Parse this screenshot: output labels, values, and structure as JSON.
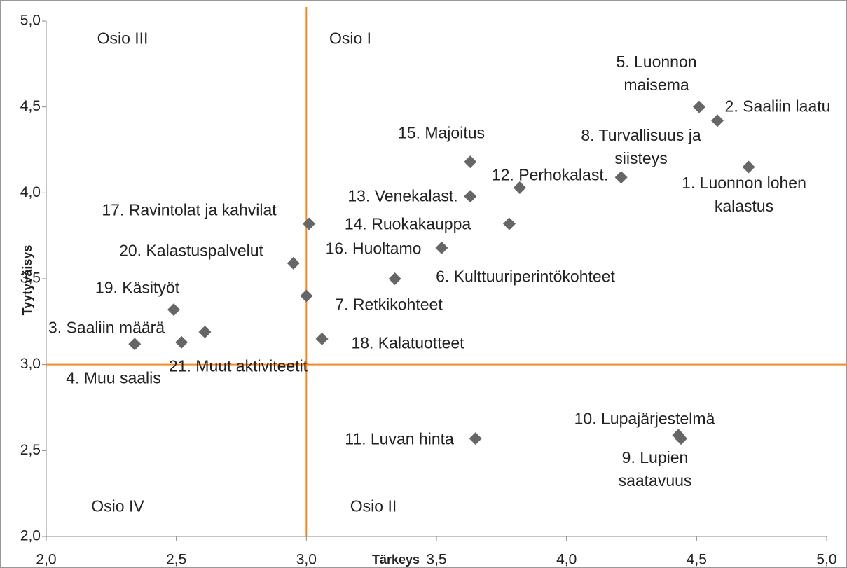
{
  "chart_data": {
    "type": "scatter",
    "x_label": "Tärkeys",
    "y_label": "Tyytyväisys",
    "color": "#666666",
    "reference_color": "#f08a24",
    "xlim": [
      2,
      5
    ],
    "ylim": [
      2,
      5
    ],
    "xticks": [
      {
        "value": 2,
        "label": "2,0"
      },
      {
        "value": 2.5,
        "label": "2,5"
      },
      {
        "value": 3,
        "label": "3,0"
      },
      {
        "value": 3.5,
        "label": "3,5"
      },
      {
        "value": 4,
        "label": "4,0"
      },
      {
        "value": 4.5,
        "label": "4,5"
      },
      {
        "value": 5,
        "label": "5,0"
      }
    ],
    "yticks": [
      {
        "value": 2,
        "label": "2,0"
      },
      {
        "value": 2.5,
        "label": "2,5"
      },
      {
        "value": 3,
        "label": "3,0"
      },
      {
        "value": 3.5,
        "label": "3,5"
      },
      {
        "value": 4,
        "label": "4,0"
      },
      {
        "value": 4.5,
        "label": "4,5"
      },
      {
        "value": 5,
        "label": "5,0"
      }
    ],
    "reference_lines": {
      "x": 3.0,
      "y": 3.0
    },
    "annotations": [
      "Osio III",
      "Osio I",
      "Osio IV",
      "Osio II"
    ],
    "point_labels": [
      "5. Luonnon maisema",
      "2. Saaliin laatu",
      "1. Luonnon lohen kalastus",
      "8. Turvallisuus ja siisteys",
      "15. Majoitus",
      "13. Venekalast.",
      "12. Perhokalast.",
      "14. Ruokakauppa",
      "17. Ravintolat ja kahvilat",
      "16. Huoltamo",
      "20. Kalastuspalvelut",
      "6. Kulttuuriperintökohteet",
      "7. Retkikohteet",
      "19. Käsityöt",
      "3. Saaliin määrä",
      "18. Kalatuotteet",
      "4. Muu saalis",
      "21. Muut aktiviteetit",
      "11. Luvan hinta",
      "10. Lupajärjestelmä",
      "9. Lupien saatavuus"
    ],
    "x": [
      4.51,
      4.58,
      4.7,
      4.21,
      3.63,
      3.63,
      3.82,
      3.78,
      3.01,
      3.52,
      2.95,
      3.34,
      3.0,
      2.49,
      3.06,
      2.61,
      2.52,
      2.34,
      3.65,
      4.43,
      4.44
    ],
    "values": [
      4.5,
      4.42,
      4.15,
      4.09,
      4.18,
      3.98,
      4.03,
      3.82,
      3.82,
      3.68,
      3.59,
      3.5,
      3.4,
      3.32,
      3.15,
      3.19,
      3.13,
      3.12,
      2.57,
      2.59,
      2.57
    ]
  }
}
